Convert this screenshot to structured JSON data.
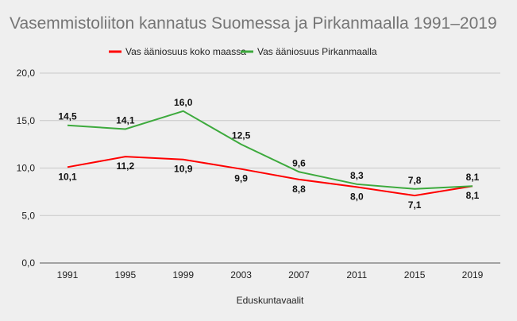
{
  "chart_data": {
    "type": "line",
    "title": "Vasemmistoliiton kannatus Suomessa ja Pirkanmaalla 1991–2019",
    "xlabel": "Eduskuntavaalit",
    "ylabel": "",
    "categories": [
      "1991",
      "1995",
      "1999",
      "2003",
      "2007",
      "2011",
      "2015",
      "2019"
    ],
    "ylim": [
      0,
      20
    ],
    "yticks": [
      "0,0",
      "5,0",
      "10,0",
      "15,0",
      "20,0"
    ],
    "ytick_values": [
      0,
      5,
      10,
      15,
      20
    ],
    "grid": true,
    "legend_position": "top",
    "series": [
      {
        "name": "Vas ääniosuus koko maassa",
        "color": "#ff0000",
        "values": [
          10.1,
          11.2,
          10.9,
          9.9,
          8.8,
          8.0,
          7.1,
          8.1
        ],
        "labels": [
          "10,1",
          "11,2",
          "10,9",
          "9,9",
          "8,8",
          "8,0",
          "7,1",
          "8,1"
        ]
      },
      {
        "name": "Vas ääniosuus Pirkanmaalla",
        "color": "#3daa3d",
        "values": [
          14.5,
          14.1,
          16.0,
          12.5,
          9.6,
          8.3,
          7.8,
          8.1
        ],
        "labels": [
          "14,5",
          "14,1",
          "16,0",
          "12,5",
          "9,6",
          "8,3",
          "7,8",
          "8,1"
        ]
      }
    ]
  }
}
